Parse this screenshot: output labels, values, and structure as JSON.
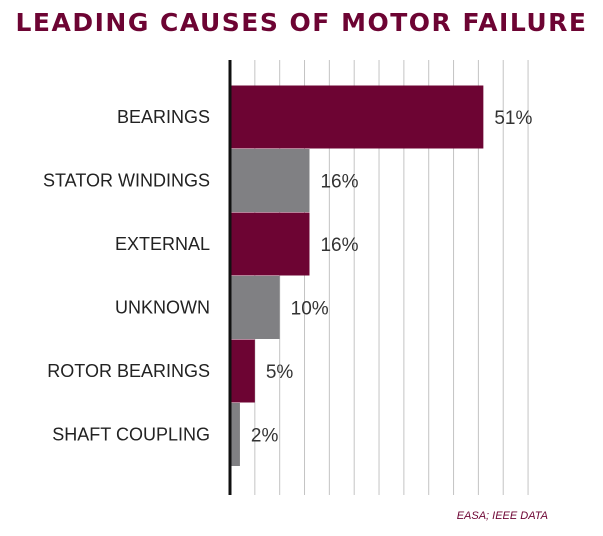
{
  "chart_data": {
    "type": "bar",
    "orientation": "horizontal",
    "title": "LEADING CAUSES OF MOTOR FAILURE",
    "categories": [
      "BEARINGS",
      "STATOR WINDINGS",
      "EXTERNAL",
      "UNKNOWN",
      "ROTOR BEARINGS",
      "SHAFT COUPLING"
    ],
    "values": [
      51,
      16,
      16,
      10,
      5,
      2
    ],
    "value_labels": [
      "51%",
      "16%",
      "16%",
      "10%",
      "5%",
      "2%"
    ],
    "bar_colors": [
      "#6d0433",
      "#808083",
      "#6d0433",
      "#808083",
      "#6d0433",
      "#808083"
    ],
    "xlim": [
      0,
      62
    ],
    "grid": true,
    "source": "EASA; IEEE DATA"
  }
}
